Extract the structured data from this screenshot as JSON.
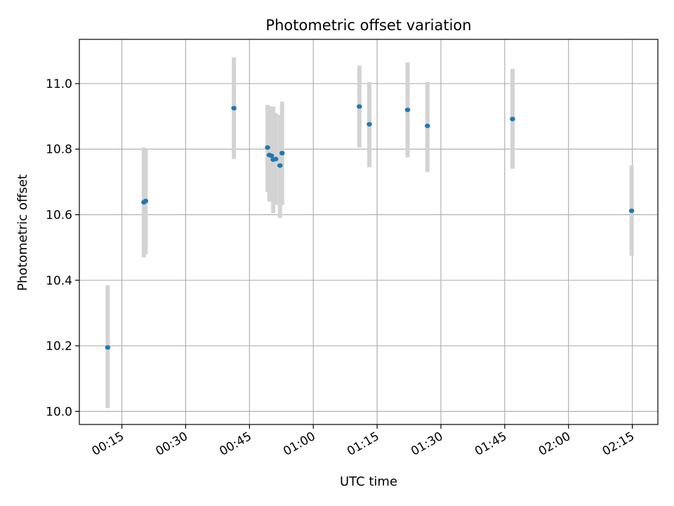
{
  "chart_data": {
    "type": "scatter",
    "title": "Photometric offset variation",
    "xlabel": "UTC time",
    "ylabel": "Photometric offset",
    "x_ticks": [
      "00:15",
      "00:30",
      "00:45",
      "01:00",
      "01:15",
      "01:30",
      "01:45",
      "02:00",
      "02:15"
    ],
    "y_ticks": [
      "10.0",
      "10.2",
      "10.4",
      "10.6",
      "10.8",
      "11.0"
    ],
    "xlim": [
      "00:05",
      "02:21"
    ],
    "ylim": [
      9.96,
      11.135
    ],
    "grid": true,
    "colors": {
      "point": "#1f77b4",
      "errorbar": "#d3d3d3",
      "grid": "#b0b0b0",
      "axes": "#000000"
    },
    "points": [
      {
        "x": "00:11:40",
        "y": 10.195,
        "err_low": 10.01,
        "err_high": 10.385
      },
      {
        "x": "00:20:10",
        "y": 10.638,
        "err_low": 10.47,
        "err_high": 10.805
      },
      {
        "x": "00:20:35",
        "y": 10.642,
        "err_low": 10.48,
        "err_high": 10.8
      },
      {
        "x": "00:41:20",
        "y": 10.925,
        "err_low": 10.77,
        "err_high": 11.08
      },
      {
        "x": "00:49:15",
        "y": 10.805,
        "err_low": 10.67,
        "err_high": 10.935
      },
      {
        "x": "00:49:40",
        "y": 10.782,
        "err_low": 10.64,
        "err_high": 10.93
      },
      {
        "x": "00:50:10",
        "y": 10.78,
        "err_low": 10.64,
        "err_high": 10.925
      },
      {
        "x": "00:50:35",
        "y": 10.768,
        "err_low": 10.605,
        "err_high": 10.93
      },
      {
        "x": "00:51:10",
        "y": 10.77,
        "err_low": 10.63,
        "err_high": 10.91
      },
      {
        "x": "00:52:10",
        "y": 10.75,
        "err_low": 10.59,
        "err_high": 10.905
      },
      {
        "x": "00:52:40",
        "y": 10.788,
        "err_low": 10.63,
        "err_high": 10.945
      },
      {
        "x": "01:10:50",
        "y": 10.93,
        "err_low": 10.805,
        "err_high": 11.055
      },
      {
        "x": "01:13:10",
        "y": 10.876,
        "err_low": 10.745,
        "err_high": 11.005
      },
      {
        "x": "01:22:10",
        "y": 10.92,
        "err_low": 10.775,
        "err_high": 11.065
      },
      {
        "x": "01:26:50",
        "y": 10.871,
        "err_low": 10.73,
        "err_high": 11.005
      },
      {
        "x": "01:46:50",
        "y": 10.892,
        "err_low": 10.74,
        "err_high": 11.045
      },
      {
        "x": "02:14:50",
        "y": 10.612,
        "err_low": 10.475,
        "err_high": 10.75
      }
    ]
  }
}
